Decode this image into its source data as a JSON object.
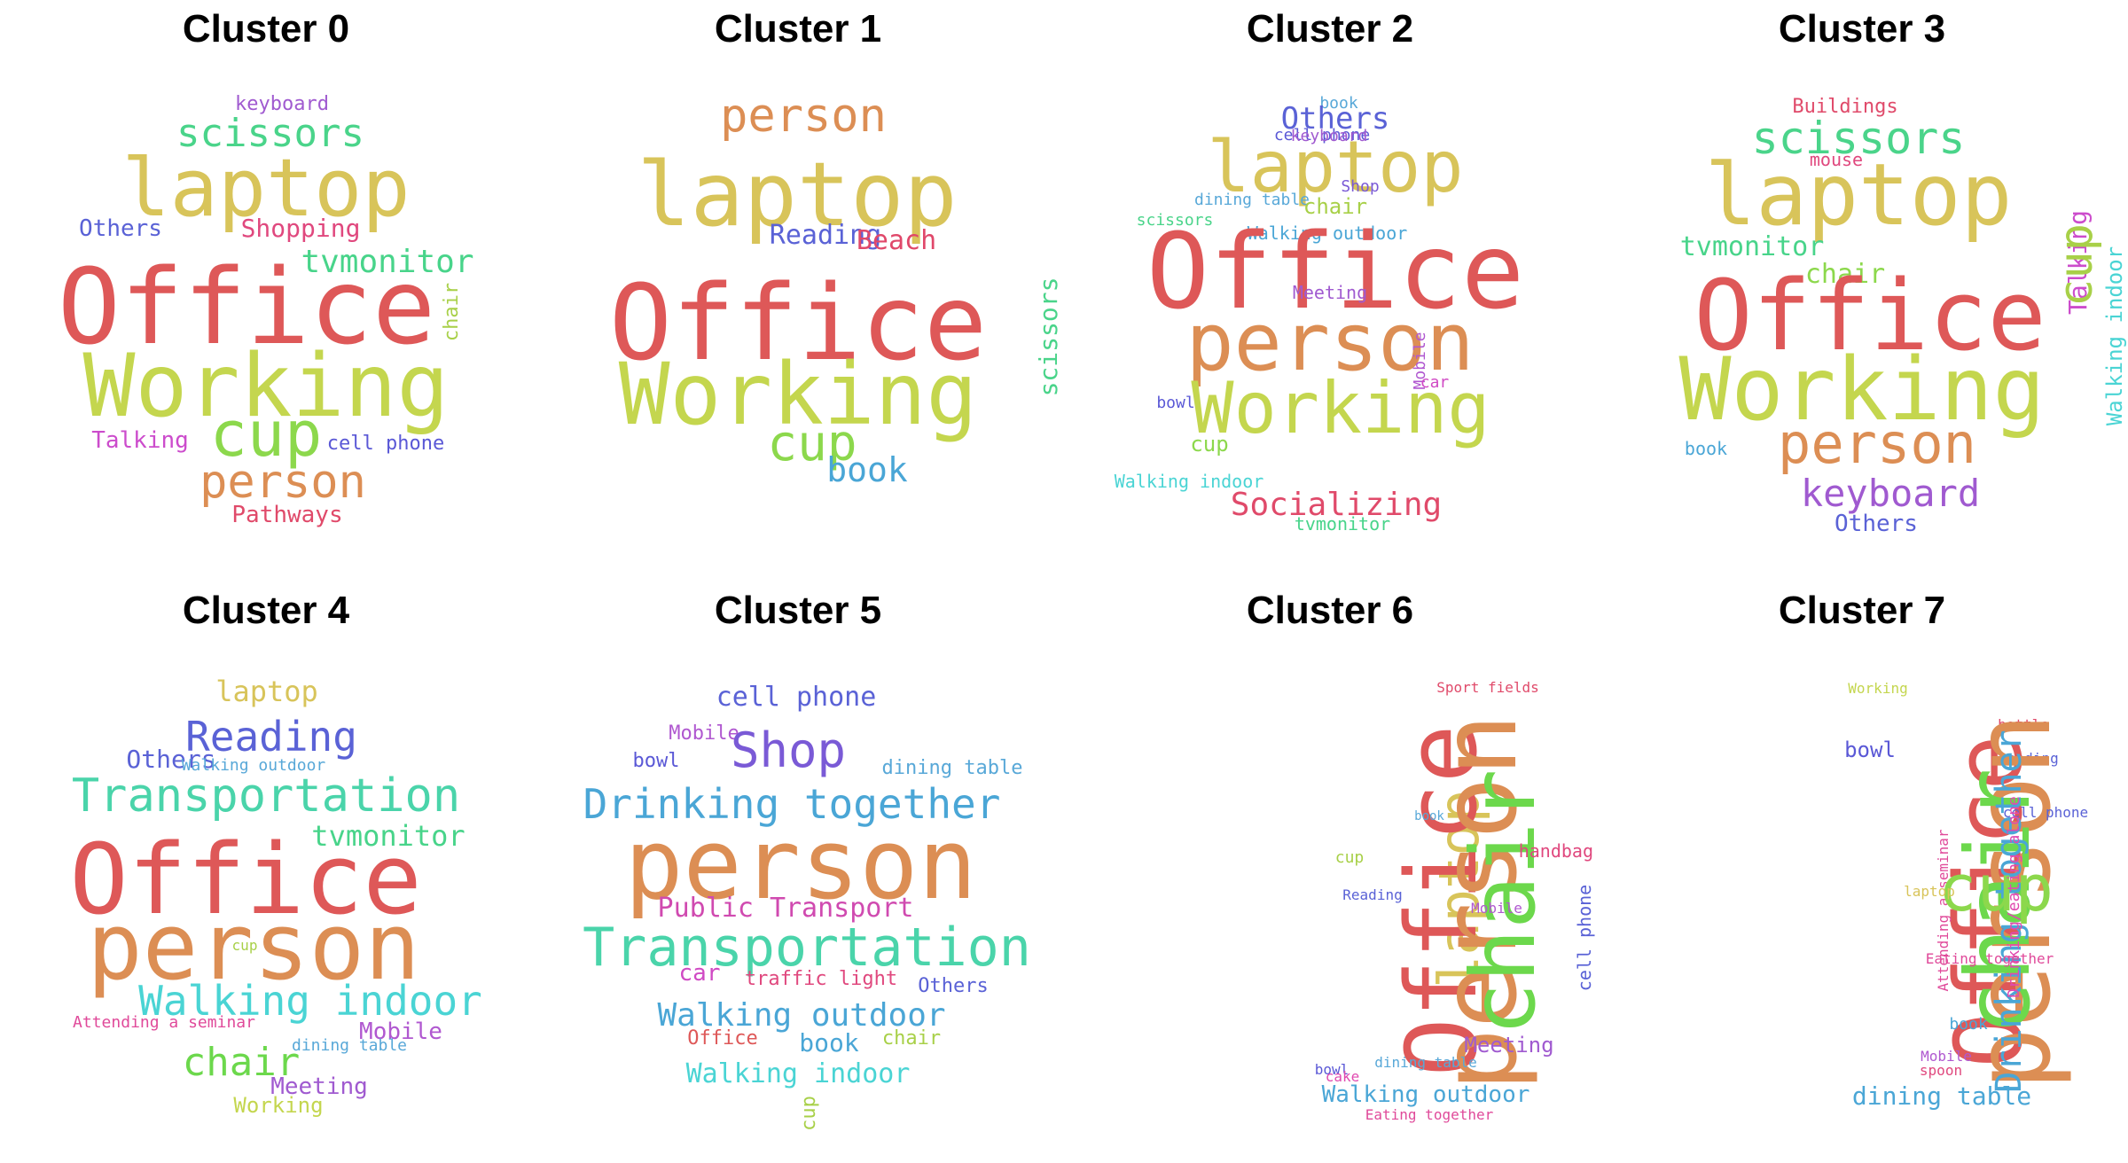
{
  "clusters": [
    {
      "title": "Cluster 0",
      "words": [
        {
          "text": "keyboard",
          "color": "#a05ad0"
        },
        {
          "text": "scissors",
          "color": "#4ad48a"
        },
        {
          "text": "laptop",
          "color": "#d8c45a"
        },
        {
          "text": "Others",
          "color": "#5a62d6"
        },
        {
          "text": "Shopping",
          "color": "#e0487e"
        },
        {
          "text": "tvmonitor",
          "color": "#48d48a"
        },
        {
          "text": "chair",
          "color": "#a8d048"
        },
        {
          "text": "Office",
          "color": "#de5858"
        },
        {
          "text": "Working",
          "color": "#c4d64e"
        },
        {
          "text": "Talking",
          "color": "#cc4ccc"
        },
        {
          "text": "cup",
          "color": "#8cd84c"
        },
        {
          "text": "cell phone",
          "color": "#5a58d6"
        },
        {
          "text": "person",
          "color": "#dc8e54"
        },
        {
          "text": "Pathways",
          "color": "#e04a6a"
        }
      ]
    },
    {
      "title": "Cluster 1",
      "words": [
        {
          "text": "person",
          "color": "#dc8e54"
        },
        {
          "text": "laptop",
          "color": "#d8c45a"
        },
        {
          "text": "Reading",
          "color": "#5a62d6"
        },
        {
          "text": "Beach",
          "color": "#e0486a"
        },
        {
          "text": "scissors",
          "color": "#4ad48a"
        },
        {
          "text": "Office",
          "color": "#de5858"
        },
        {
          "text": "Working",
          "color": "#c4d64e"
        },
        {
          "text": "cup",
          "color": "#8cd84c"
        },
        {
          "text": "book",
          "color": "#4aa6d6"
        }
      ]
    },
    {
      "title": "Cluster 2",
      "words": [
        {
          "text": "book",
          "color": "#58a8d8"
        },
        {
          "text": "Others",
          "color": "#5a62d6"
        },
        {
          "text": "cell phone",
          "color": "#5a58d6"
        },
        {
          "text": "keyboard",
          "color": "#a05ad0"
        },
        {
          "text": "laptop",
          "color": "#d8c45a"
        },
        {
          "text": "Shop",
          "color": "#7a5ad6"
        },
        {
          "text": "dining table",
          "color": "#58a8d8"
        },
        {
          "text": "chair",
          "color": "#a8d048"
        },
        {
          "text": "scissors",
          "color": "#4ad48a"
        },
        {
          "text": "Walking outdoor",
          "color": "#4aa6d6"
        },
        {
          "text": "Office",
          "color": "#de5858"
        },
        {
          "text": "person",
          "color": "#dc8e54"
        },
        {
          "text": "Mobile",
          "color": "#b058d0"
        },
        {
          "text": "car",
          "color": "#d04ac4"
        },
        {
          "text": "bowl",
          "color": "#5a58d6"
        },
        {
          "text": "Working",
          "color": "#c4d64e"
        },
        {
          "text": "cup",
          "color": "#8cd84c"
        },
        {
          "text": "Walking indoor",
          "color": "#4ad4d4"
        },
        {
          "text": "Socializing",
          "color": "#e04a6a"
        },
        {
          "text": "tvmonitor",
          "color": "#48d48a"
        },
        {
          "text": "Meeting",
          "color": "#a05ad0"
        }
      ]
    },
    {
      "title": "Cluster 3",
      "words": [
        {
          "text": "Buildings",
          "color": "#e04a6a"
        },
        {
          "text": "scissors",
          "color": "#4ad48a"
        },
        {
          "text": "mouse",
          "color": "#e0487e"
        },
        {
          "text": "laptop",
          "color": "#d8c45a"
        },
        {
          "text": "tvmonitor",
          "color": "#48d48a"
        },
        {
          "text": "Talking",
          "color": "#cc4ccc"
        },
        {
          "text": "cup",
          "color": "#a8d048"
        },
        {
          "text": "chair",
          "color": "#8cd84c"
        },
        {
          "text": "Walking indoor",
          "color": "#4ad4d4"
        },
        {
          "text": "Office",
          "color": "#de5858"
        },
        {
          "text": "Working",
          "color": "#c4d64e"
        },
        {
          "text": "book",
          "color": "#4aa6d6"
        },
        {
          "text": "person",
          "color": "#dc8e54"
        },
        {
          "text": "keyboard",
          "color": "#a05ad0"
        },
        {
          "text": "Others",
          "color": "#5a62d6"
        }
      ]
    },
    {
      "title": "Cluster 4",
      "words": [
        {
          "text": "laptop",
          "color": "#d8c45a"
        },
        {
          "text": "Reading",
          "color": "#5a62d6"
        },
        {
          "text": "Others",
          "color": "#5a62d6"
        },
        {
          "text": "Walking outdoor",
          "color": "#58a8d8"
        },
        {
          "text": "Transportation",
          "color": "#4ad4aa"
        },
        {
          "text": "tvmonitor",
          "color": "#48d48a"
        },
        {
          "text": "Office",
          "color": "#de5858"
        },
        {
          "text": "person",
          "color": "#dc8e54"
        },
        {
          "text": "cup",
          "color": "#a8d048"
        },
        {
          "text": "Walking indoor",
          "color": "#4ad4d4"
        },
        {
          "text": "Attending a seminar",
          "color": "#e04a9a"
        },
        {
          "text": "Mobile",
          "color": "#b058d0"
        },
        {
          "text": "dining table",
          "color": "#58a8d8"
        },
        {
          "text": "chair",
          "color": "#6cd84c"
        },
        {
          "text": "Meeting",
          "color": "#a05ad0"
        },
        {
          "text": "Working",
          "color": "#c4d64e"
        }
      ]
    },
    {
      "title": "Cluster 5",
      "words": [
        {
          "text": "cell phone",
          "color": "#5a62d6"
        },
        {
          "text": "Mobile",
          "color": "#b058d0"
        },
        {
          "text": "Shop",
          "color": "#7a5ad6"
        },
        {
          "text": "bowl",
          "color": "#5a58d6"
        },
        {
          "text": "dining table",
          "color": "#58a8d8"
        },
        {
          "text": "Drinking together",
          "color": "#4aa6d6"
        },
        {
          "text": "person",
          "color": "#dc8e54"
        },
        {
          "text": "Public Transport",
          "color": "#d04ab0"
        },
        {
          "text": "Transportation",
          "color": "#4ad4aa"
        },
        {
          "text": "car",
          "color": "#d04ac4"
        },
        {
          "text": "traffic light",
          "color": "#e0487e"
        },
        {
          "text": "Others",
          "color": "#5a62d6"
        },
        {
          "text": "Walking outdoor",
          "color": "#4aa6d6"
        },
        {
          "text": "Office",
          "color": "#de5858"
        },
        {
          "text": "book",
          "color": "#4aa6d6"
        },
        {
          "text": "chair",
          "color": "#a8d048"
        },
        {
          "text": "Walking indoor",
          "color": "#4ad4d4"
        },
        {
          "text": "cup",
          "color": "#a8d048"
        }
      ]
    },
    {
      "title": "Cluster 6",
      "words": [
        {
          "text": "Sport fields",
          "color": "#e04a6a"
        },
        {
          "text": "laptop",
          "color": "#d8c45a"
        },
        {
          "text": "Office",
          "color": "#de5858"
        },
        {
          "text": "person",
          "color": "#dc8e54"
        },
        {
          "text": "chair",
          "color": "#6cd84c"
        },
        {
          "text": "book",
          "color": "#58a8d8"
        },
        {
          "text": "cup",
          "color": "#a8d048"
        },
        {
          "text": "handbag",
          "color": "#e0487e"
        },
        {
          "text": "Reading",
          "color": "#5a62d6"
        },
        {
          "text": "Mobile",
          "color": "#b058d0"
        },
        {
          "text": "cell phone",
          "color": "#5a62d6"
        },
        {
          "text": "Meeting",
          "color": "#a05ad0"
        },
        {
          "text": "bowl",
          "color": "#5a58d6"
        },
        {
          "text": "cake",
          "color": "#e04ab0"
        },
        {
          "text": "dining table",
          "color": "#58a8d8"
        },
        {
          "text": "Walking outdoor",
          "color": "#4aa6d6"
        },
        {
          "text": "Eating together",
          "color": "#e04a9a"
        }
      ]
    },
    {
      "title": "Cluster 7",
      "words": [
        {
          "text": "Working",
          "color": "#c4d64e"
        },
        {
          "text": "bottle",
          "color": "#e04a6a"
        },
        {
          "text": "bowl",
          "color": "#5a58d6"
        },
        {
          "text": "Reading",
          "color": "#5a62d6"
        },
        {
          "text": "Office",
          "color": "#de5858"
        },
        {
          "text": "person",
          "color": "#dc8e54"
        },
        {
          "text": "chair",
          "color": "#6cd84c"
        },
        {
          "text": "cell phone",
          "color": "#5a62d6"
        },
        {
          "text": "Drinking together",
          "color": "#4aa6d6"
        },
        {
          "text": "Attending a seminar",
          "color": "#e04a9a"
        },
        {
          "text": "cup",
          "color": "#8cd84c"
        },
        {
          "text": "laptop",
          "color": "#d8c45a"
        },
        {
          "text": "Drinking/eating alone",
          "color": "#e04ab0"
        },
        {
          "text": "Eating together",
          "color": "#e04a9a"
        },
        {
          "text": "book",
          "color": "#4aa6d6"
        },
        {
          "text": "Mobile",
          "color": "#b058d0"
        },
        {
          "text": "spoon",
          "color": "#e0487e"
        },
        {
          "text": "dining table",
          "color": "#4aa6d6"
        }
      ]
    }
  ]
}
